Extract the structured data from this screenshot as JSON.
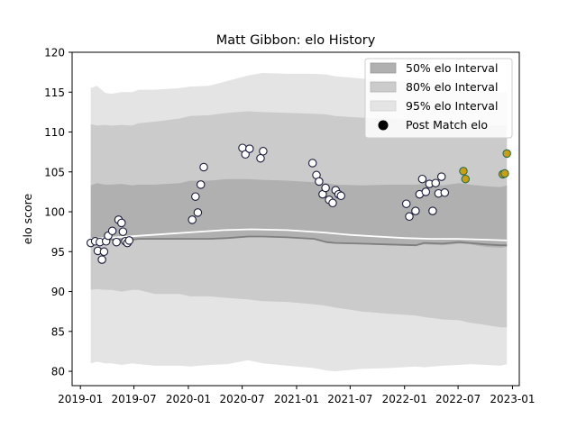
{
  "chart_data": {
    "type": "area",
    "title": "Matt Gibbon: elo History",
    "xlabel": "",
    "ylabel": "elo score",
    "xlim": [
      "2018-12-04",
      "2023-01-24"
    ],
    "ylim": [
      78.2,
      120
    ],
    "x_ticks": [
      "2019-01",
      "2019-07",
      "2020-01",
      "2020-07",
      "2021-01",
      "2021-07",
      "2022-01",
      "2022-07",
      "2023-01"
    ],
    "y_ticks": [
      80,
      85,
      90,
      95,
      100,
      105,
      110,
      115,
      120
    ],
    "grid": false,
    "legend_position": "top-right",
    "legend": [
      {
        "label": "50% elo Interval",
        "color": "#b0b0b0"
      },
      {
        "label": "80% elo Interval",
        "color": "#cbcbcb"
      },
      {
        "label": "95% elo Interval",
        "color": "#e4e4e4"
      },
      {
        "label": "Post Match elo",
        "color": "#000000"
      }
    ],
    "intervals": {
      "dates": [
        "2019-02-05",
        "2019-02-26",
        "2019-03-26",
        "2019-04-16",
        "2019-05-21",
        "2019-06-25",
        "2019-07-16",
        "2019-09-10",
        "2019-12-03",
        "2020-01-07",
        "2020-03-10",
        "2020-05-12",
        "2020-07-21",
        "2020-09-08",
        "2020-12-01",
        "2021-03-02",
        "2021-04-13",
        "2021-05-11",
        "2021-08-10",
        "2021-11-09",
        "2022-02-08",
        "2022-03-08",
        "2022-05-10",
        "2022-07-05",
        "2022-08-09",
        "2022-10-04",
        "2022-11-22",
        "2022-12-13"
      ],
      "median": [
        96.2,
        96.4,
        96.5,
        96.5,
        96.5,
        96.5,
        96.6,
        96.6,
        96.6,
        96.6,
        96.6,
        96.7,
        96.9,
        96.9,
        96.8,
        96.6,
        96.2,
        96.1,
        96.0,
        95.9,
        95.8,
        96.1,
        96.0,
        96.2,
        96.1,
        95.9,
        95.8,
        95.8
      ],
      "q25": [
        95.9,
        96.2,
        96.4,
        96.4,
        96.5,
        96.5,
        96.5,
        96.6,
        96.6,
        96.6,
        96.5,
        96.6,
        96.8,
        96.9,
        96.8,
        96.5,
        96.1,
        96.0,
        95.9,
        95.8,
        95.7,
        95.9,
        95.8,
        96.0,
        95.9,
        95.6,
        95.5,
        95.6
      ],
      "q75": [
        103.3,
        103.6,
        103.4,
        103.4,
        103.5,
        103.3,
        103.4,
        103.4,
        103.6,
        103.9,
        103.9,
        104.1,
        104.1,
        104.0,
        103.9,
        103.7,
        103.6,
        103.4,
        103.3,
        103.4,
        103.4,
        103.5,
        103.3,
        103.6,
        103.4,
        103.2,
        103.1,
        103.3
      ],
      "p10": [
        90.2,
        90.3,
        90.2,
        90.2,
        90.0,
        90.2,
        90.2,
        89.7,
        89.7,
        89.4,
        89.4,
        89.2,
        89.0,
        88.8,
        88.7,
        88.4,
        88.2,
        88.0,
        87.5,
        87.2,
        87.0,
        86.8,
        86.5,
        86.4,
        86.1,
        85.8,
        85.5,
        85.5
      ],
      "p90": [
        111.0,
        110.8,
        110.9,
        110.8,
        110.9,
        110.8,
        111.1,
        111.3,
        111.7,
        112.0,
        112.1,
        112.4,
        112.6,
        112.5,
        112.4,
        112.3,
        112.2,
        112.0,
        111.8,
        111.7,
        111.5,
        111.4,
        111.2,
        111.1,
        111.0,
        110.9,
        110.8,
        110.8
      ],
      "p2_5": [
        81.0,
        81.2,
        81.0,
        81.0,
        80.8,
        81.0,
        80.9,
        80.7,
        80.7,
        80.6,
        80.8,
        80.9,
        81.4,
        81.0,
        80.7,
        80.4,
        80.1,
        80.0,
        80.3,
        80.4,
        80.6,
        80.5,
        80.7,
        80.8,
        80.9,
        80.8,
        80.7,
        80.9
      ],
      "p97_5": [
        115.5,
        115.8,
        114.9,
        114.8,
        115.0,
        115.0,
        115.3,
        115.3,
        115.5,
        115.7,
        115.8,
        116.4,
        117.1,
        117.4,
        117.3,
        117.3,
        117.2,
        117.0,
        116.7,
        116.5,
        116.2,
        116.1,
        115.8,
        115.6,
        115.5,
        115.2,
        115.0,
        115.0
      ]
    },
    "mean_line": {
      "dates": [
        "2019-02-05",
        "2019-05-01",
        "2019-09-01",
        "2020-01-01",
        "2020-05-01",
        "2020-08-01",
        "2020-12-01",
        "2021-04-01",
        "2021-07-01",
        "2021-10-01",
        "2022-01-01",
        "2022-04-01",
        "2022-07-01",
        "2022-10-01",
        "2022-12-13"
      ],
      "values": [
        96.6,
        96.8,
        97.1,
        97.4,
        97.7,
        97.8,
        97.7,
        97.4,
        97.1,
        96.9,
        96.7,
        96.6,
        96.6,
        96.5,
        96.4
      ]
    },
    "post_match": {
      "dates": [
        "2019-02-05",
        "2019-02-20",
        "2019-03-01",
        "2019-03-08",
        "2019-03-15",
        "2019-03-22",
        "2019-03-29",
        "2019-04-05",
        "2019-04-19",
        "2019-05-03",
        "2019-05-10",
        "2019-05-20",
        "2019-05-25",
        "2019-06-02",
        "2019-06-09",
        "2019-06-15",
        "2020-01-14",
        "2020-01-25",
        "2020-02-02",
        "2020-02-12",
        "2020-02-22",
        "2020-07-02",
        "2020-07-12",
        "2020-07-26",
        "2020-09-01",
        "2020-09-10",
        "2021-02-24",
        "2021-03-09",
        "2021-03-18",
        "2021-03-30",
        "2021-04-09",
        "2021-04-21",
        "2021-05-03",
        "2021-05-13",
        "2021-05-23",
        "2021-05-31",
        "2022-01-07",
        "2022-01-17",
        "2022-02-07",
        "2022-02-21",
        "2022-03-02",
        "2022-03-14",
        "2022-03-26",
        "2022-04-06",
        "2022-04-16",
        "2022-04-26",
        "2022-05-06",
        "2022-05-17"
      ],
      "values": [
        96.1,
        96.3,
        95.1,
        96.2,
        94.0,
        95.0,
        96.3,
        97.0,
        97.6,
        96.2,
        99.0,
        98.6,
        97.5,
        96.3,
        96.1,
        96.4,
        99.0,
        101.9,
        99.9,
        103.4,
        105.6,
        108.0,
        107.2,
        107.9,
        106.7,
        107.6,
        106.1,
        104.6,
        103.8,
        102.2,
        103.0,
        101.5,
        101.1,
        102.7,
        102.2,
        102.0,
        101.0,
        99.4,
        100.1,
        102.2,
        104.1,
        102.5,
        103.5,
        100.1,
        103.6,
        102.3,
        104.4,
        102.4
      ]
    },
    "post_match_highlighted": {
      "dates": [
        "2022-07-19",
        "2022-07-26",
        "2022-11-29",
        "2022-12-06",
        "2022-12-13"
      ],
      "values": [
        105.1,
        104.1,
        104.7,
        104.8,
        107.3
      ]
    }
  }
}
